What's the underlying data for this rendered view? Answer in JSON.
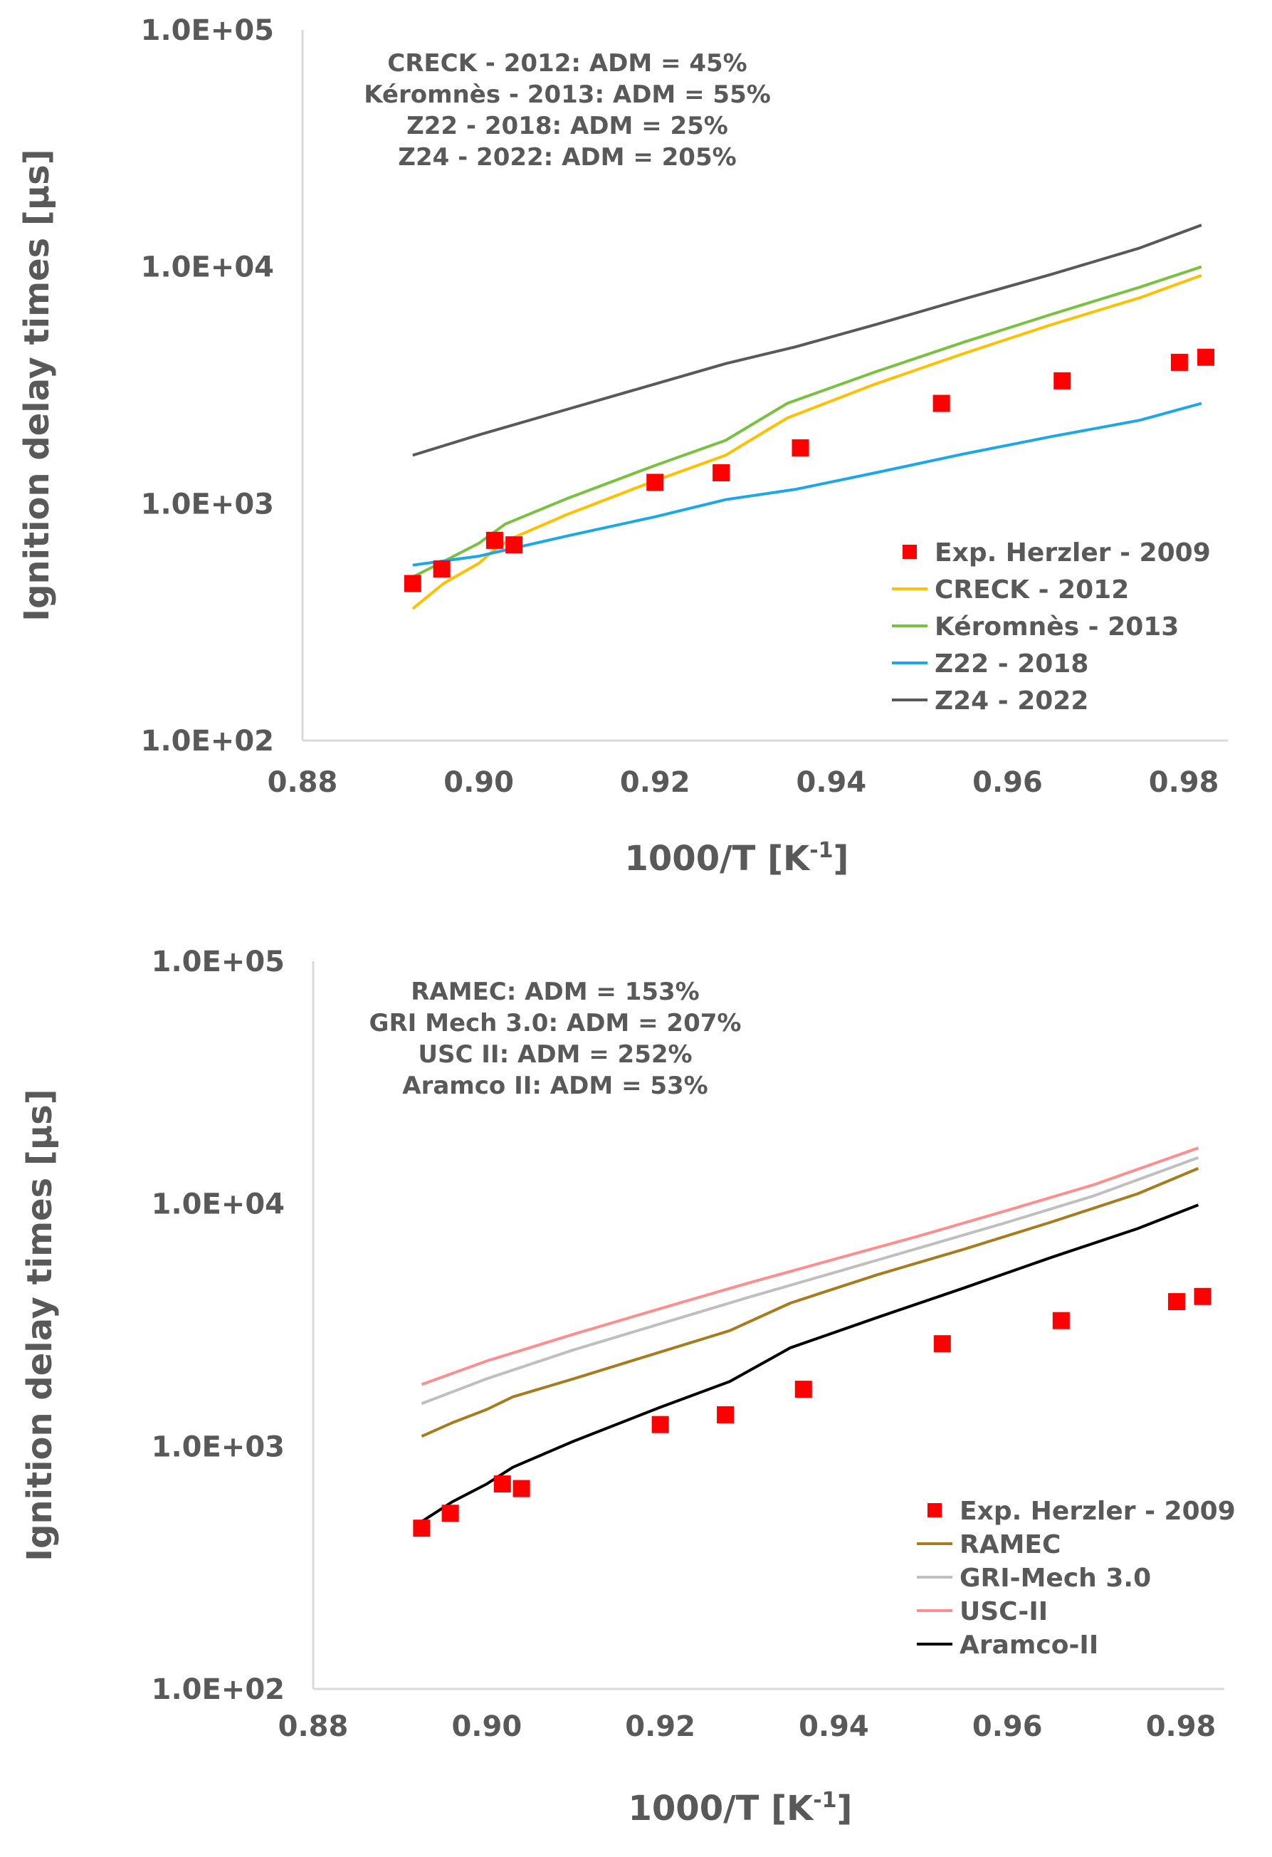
{
  "chart_data": [
    {
      "type": "line",
      "xlabel": "1000/T [K",
      "xlabel_sup": "-1",
      "xlabel_end": "]",
      "ylabel": "Ignition delay times [µs]",
      "yscale": "log",
      "xlim": [
        0.88,
        0.985
      ],
      "ylim": [
        100,
        100000
      ],
      "x_ticks": [
        "0.88",
        "0.90",
        "0.92",
        "0.94",
        "0.96",
        "0.98"
      ],
      "y_ticks": [
        "1.0E+02",
        "1.0E+03",
        "1.0E+04",
        "1.0E+05"
      ],
      "annotations": [
        "CRECK - 2012: ADM = 45%",
        "Kéromnès - 2013: ADM = 55%",
        "Z22 - 2018: ADM = 25%",
        "Z24 - 2022: ADM = 205%"
      ],
      "legend_position": "bottom-right",
      "series": [
        {
          "name": "Exp. Herzler - 2009",
          "kind": "scatter",
          "color": "#ff0000",
          "x": [
            0.8925,
            0.8958,
            0.9018,
            0.904,
            0.92,
            0.9275,
            0.9365,
            0.9525,
            0.9662,
            0.9795,
            0.9825
          ],
          "y": [
            460,
            530,
            700,
            670,
            1230,
            1350,
            1720,
            2650,
            3300,
            3950,
            4150
          ]
        },
        {
          "name": "CRECK - 2012",
          "kind": "line",
          "color": "#ffc000",
          "x": [
            0.8925,
            0.896,
            0.9,
            0.902,
            0.904,
            0.91,
            0.92,
            0.928,
            0.935,
            0.945,
            0.955,
            0.965,
            0.975,
            0.982
          ],
          "y": [
            360,
            460,
            560,
            650,
            720,
            900,
            1250,
            1600,
            2300,
            3200,
            4300,
            5700,
            7400,
            9200
          ]
        },
        {
          "name": "Kéromnès - 2013",
          "kind": "line",
          "color": "#7ac142",
          "x": [
            0.8925,
            0.896,
            0.9,
            0.903,
            0.905,
            0.91,
            0.92,
            0.928,
            0.935,
            0.945,
            0.955,
            0.965,
            0.975,
            0.982
          ],
          "y": [
            490,
            570,
            680,
            820,
            880,
            1050,
            1450,
            1850,
            2650,
            3600,
            4800,
            6300,
            8200,
            10000
          ]
        },
        {
          "name": "Z22 - 2018",
          "kind": "line",
          "color": "#1ea7e6",
          "x": [
            0.8925,
            0.9,
            0.91,
            0.92,
            0.928,
            0.936,
            0.945,
            0.955,
            0.965,
            0.975,
            0.982
          ],
          "y": [
            550,
            600,
            730,
            880,
            1040,
            1150,
            1350,
            1620,
            1920,
            2250,
            2650
          ]
        },
        {
          "name": "Z24 - 2022",
          "kind": "line",
          "color": "#595959",
          "x": [
            0.8925,
            0.9,
            0.91,
            0.92,
            0.928,
            0.936,
            0.945,
            0.955,
            0.965,
            0.975,
            0.982
          ],
          "y": [
            1600,
            1950,
            2500,
            3200,
            3900,
            4600,
            5700,
            7300,
            9300,
            12000,
            15000
          ]
        }
      ]
    },
    {
      "type": "line",
      "xlabel": "1000/T [K",
      "xlabel_sup": "-1",
      "xlabel_end": "]",
      "ylabel": "Ignition delay times [µs]",
      "yscale": "log",
      "xlim": [
        0.88,
        0.985
      ],
      "ylim": [
        100,
        100000
      ],
      "x_ticks": [
        "0.88",
        "0.90",
        "0.92",
        "0.94",
        "0.96",
        "0.98"
      ],
      "y_ticks": [
        "1.0E+02",
        "1.0E+03",
        "1.0E+04",
        "1.0E+05"
      ],
      "annotations": [
        "RAMEC: ADM = 153%",
        "GRI Mech 3.0: ADM = 207%",
        "USC II: ADM = 252%",
        "Aramco II: ADM = 53%"
      ],
      "legend_position": "bottom-right",
      "series": [
        {
          "name": "Exp. Herzler - 2009",
          "kind": "scatter",
          "color": "#ff0000",
          "x": [
            0.8925,
            0.8958,
            0.9018,
            0.904,
            0.92,
            0.9275,
            0.9365,
            0.9525,
            0.9662,
            0.9795,
            0.9825
          ],
          "y": [
            460,
            530,
            700,
            670,
            1230,
            1350,
            1720,
            2650,
            3300,
            3950,
            4150
          ]
        },
        {
          "name": "RAMEC",
          "kind": "line",
          "color": "#a67c1f",
          "x": [
            0.8925,
            0.896,
            0.9,
            0.903,
            0.91,
            0.92,
            0.928,
            0.935,
            0.945,
            0.955,
            0.965,
            0.975,
            0.982
          ],
          "y": [
            1100,
            1250,
            1420,
            1600,
            1900,
            2450,
            3000,
            3900,
            5100,
            6500,
            8400,
            11000,
            14000
          ]
        },
        {
          "name": "GRI-Mech 3.0",
          "kind": "line",
          "color": "#bfbfbf",
          "x": [
            0.8925,
            0.9,
            0.91,
            0.92,
            0.93,
            0.94,
            0.95,
            0.96,
            0.97,
            0.982
          ],
          "y": [
            1500,
            1900,
            2500,
            3200,
            4100,
            5200,
            6600,
            8400,
            10800,
            15500
          ]
        },
        {
          "name": "USC-II",
          "kind": "line",
          "color": "#ff8f8f",
          "x": [
            0.8925,
            0.9,
            0.91,
            0.92,
            0.93,
            0.94,
            0.95,
            0.96,
            0.97,
            0.982
          ],
          "y": [
            1800,
            2250,
            2900,
            3700,
            4700,
            5900,
            7400,
            9400,
            12000,
            17000
          ]
        },
        {
          "name": "Aramco-II",
          "kind": "line",
          "color": "#000000",
          "x": [
            0.8925,
            0.896,
            0.9,
            0.903,
            0.905,
            0.91,
            0.92,
            0.928,
            0.935,
            0.945,
            0.955,
            0.965,
            0.975,
            0.982
          ],
          "y": [
            490,
            590,
            700,
            820,
            880,
            1050,
            1450,
            1850,
            2550,
            3400,
            4500,
            6000,
            7900,
            9900
          ]
        }
      ]
    }
  ]
}
